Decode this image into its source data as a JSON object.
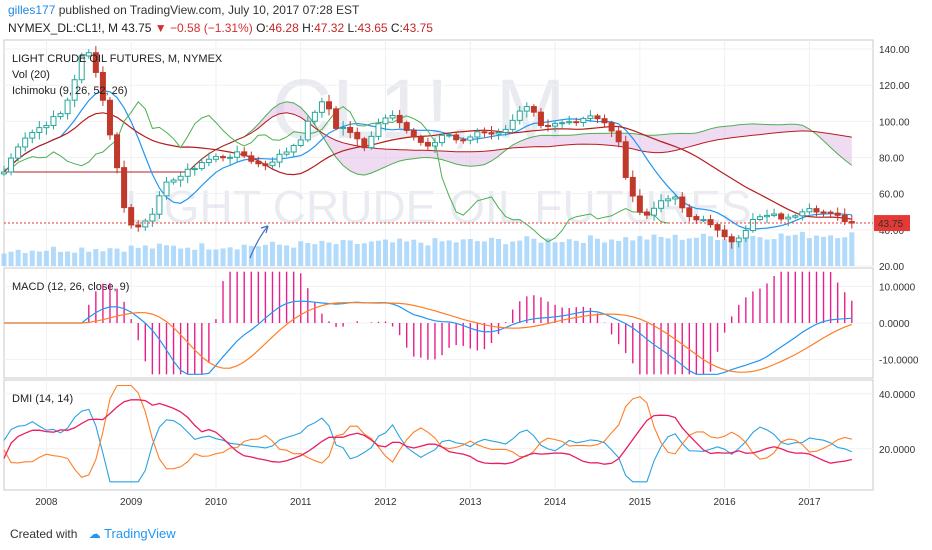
{
  "header": {
    "user": "gilles177",
    "published_text": "published on TradingView.com, July 10, 2017 07:28 EST"
  },
  "quote": {
    "symbol": "NYMEX_DL:CL1!, M",
    "last": "43.75",
    "arrow": "▼",
    "change": "−0.58 (−1.31%)",
    "o_label": "O:",
    "o": "46.28",
    "h_label": "H:",
    "h": "47.32",
    "l_label": "L:",
    "l": "43.65",
    "c_label": "C:",
    "c": "43.75"
  },
  "watermark": {
    "line1": "CL1!, M",
    "line2": "LIGHT CRUDE OIL FUTURES"
  },
  "footer": {
    "created_with": "Created with",
    "brand": "TradingView"
  },
  "colors": {
    "up": "#26a69a",
    "down": "#c0392b",
    "tenkan": "#2196f3",
    "kijun": "#b71c1c",
    "lagging": "#4caf50",
    "spanA": "#4caf50",
    "spanB": "#b71c1c",
    "cloud": "#e1bee7",
    "volume": "#90caf9",
    "macd": "#2196f3",
    "signal": "#ff7f27",
    "hist": "#e91e8c",
    "dmi_plus": "#29a3e0",
    "dmi_minus": "#ff7f27",
    "adx": "#e91e63",
    "price_tag": "#e53935"
  },
  "chart_data": [
    {
      "type": "candlestick",
      "title": "LIGHT CRUDE OIL FUTURES, M, NYMEX",
      "indicators": [
        "Vol (20)",
        "Ichimoku (9, 26, 52, 26)"
      ],
      "x_ticks": [
        "2008",
        "2009",
        "2010",
        "2011",
        "2012",
        "2013",
        "2014",
        "2015",
        "2016",
        "2017"
      ],
      "y_ticks": [
        "140.00",
        "120.00",
        "100.00",
        "80.00",
        "60.00",
        "40.00",
        "20.00"
      ],
      "y_range": [
        20,
        145
      ],
      "last_price_label": "43.75",
      "price_path": [
        [
          2007.5,
          72
        ],
        [
          2007.7,
          90
        ],
        [
          2007.9,
          96
        ],
        [
          2008.2,
          105
        ],
        [
          2008.45,
          140
        ],
        [
          2008.55,
          135
        ],
        [
          2008.7,
          105
        ],
        [
          2008.85,
          70
        ],
        [
          2008.95,
          45
        ],
        [
          2009.05,
          40
        ],
        [
          2009.25,
          50
        ],
        [
          2009.45,
          68
        ],
        [
          2009.6,
          70
        ],
        [
          2009.85,
          78
        ],
        [
          2010.0,
          80
        ],
        [
          2010.3,
          82
        ],
        [
          2010.55,
          75
        ],
        [
          2010.85,
          84
        ],
        [
          2011.0,
          91
        ],
        [
          2011.15,
          105
        ],
        [
          2011.3,
          112
        ],
        [
          2011.4,
          97
        ],
        [
          2011.55,
          96
        ],
        [
          2011.75,
          85
        ],
        [
          2011.9,
          99
        ],
        [
          2012.1,
          105
        ],
        [
          2012.3,
          92
        ],
        [
          2012.5,
          85
        ],
        [
          2012.7,
          94
        ],
        [
          2012.9,
          88
        ],
        [
          2013.1,
          95
        ],
        [
          2013.35,
          93
        ],
        [
          2013.55,
          104
        ],
        [
          2013.7,
          108
        ],
        [
          2013.85,
          95
        ],
        [
          2014.0,
          98
        ],
        [
          2014.2,
          100
        ],
        [
          2014.45,
          104
        ],
        [
          2014.6,
          99
        ],
        [
          2014.75,
          88
        ],
        [
          2014.85,
          66
        ],
        [
          2014.95,
          53
        ],
        [
          2015.1,
          48
        ],
        [
          2015.3,
          59
        ],
        [
          2015.45,
          56
        ],
        [
          2015.6,
          45
        ],
        [
          2015.8,
          46
        ],
        [
          2015.95,
          37
        ],
        [
          2016.05,
          33
        ],
        [
          2016.2,
          38
        ],
        [
          2016.35,
          46
        ],
        [
          2016.55,
          48
        ],
        [
          2016.75,
          46
        ],
        [
          2016.9,
          51
        ],
        [
          2017.0,
          53
        ],
        [
          2017.2,
          49
        ],
        [
          2017.4,
          46
        ],
        [
          2017.5,
          43.75
        ]
      ]
    },
    {
      "type": "line",
      "title": "MACD (12, 26, close, 9)",
      "y_ticks": [
        "10.0000",
        "0.0000",
        "-10.0000"
      ],
      "y_range": [
        -15,
        15
      ]
    },
    {
      "type": "line",
      "title": "DMI (14, 14)",
      "y_ticks": [
        "40.0000",
        "20.0000"
      ],
      "y_range": [
        5,
        45
      ]
    }
  ]
}
